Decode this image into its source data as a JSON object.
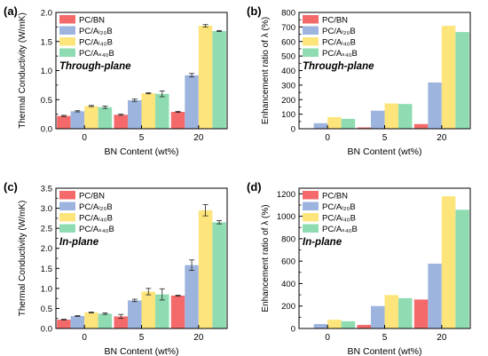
{
  "colors": {
    "series": [
      "#f46a6a",
      "#9db5de",
      "#fde57b",
      "#8fdcb3"
    ],
    "axis": "#000000"
  },
  "chart_data": [
    {
      "type": "bar",
      "panel_label": "(a)",
      "annotation": "Through-plane",
      "categories": [
        "0",
        "5",
        "20"
      ],
      "xlabel": "BN Content (wt%)",
      "ylabel": "Thermal Conductivity (W/mK)",
      "ylim": [
        0,
        2.0
      ],
      "yticks": [
        "0.0",
        "0.5",
        "1.0",
        "1.5",
        "2.0"
      ],
      "legend": "top-left",
      "grid": false,
      "error_bars": true,
      "series": [
        {
          "name": "PC/BN",
          "values": [
            0.22,
            0.24,
            0.29
          ],
          "errors": [
            0.01,
            0.01,
            0.01
          ]
        },
        {
          "name": "PC/Aₗ₂₀B",
          "values": [
            0.3,
            0.49,
            0.92
          ],
          "errors": [
            0.01,
            0.02,
            0.03
          ]
        },
        {
          "name": "PC/Aₗ₄₀B",
          "values": [
            0.39,
            0.61,
            1.77
          ],
          "errors": [
            0.01,
            0.01,
            0.02
          ]
        },
        {
          "name": "PC/Aₛ₄₀B",
          "values": [
            0.37,
            0.6,
            1.68
          ],
          "errors": [
            0.02,
            0.05,
            0.01
          ]
        }
      ]
    },
    {
      "type": "bar",
      "panel_label": "(b)",
      "annotation": "Through-plane",
      "categories": [
        "0",
        "5",
        "20"
      ],
      "xlabel": "BN Content (wt%)",
      "ylabel": "Enhancement ratio of λ (%)",
      "ylim": [
        0,
        800
      ],
      "yticks": [
        "0",
        "100",
        "200",
        "300",
        "400",
        "500",
        "600",
        "700",
        "800"
      ],
      "legend": "top-left",
      "grid": false,
      "error_bars": false,
      "series": [
        {
          "name": "PC/BN",
          "values": [
            0,
            9,
            32
          ]
        },
        {
          "name": "PC/Aₗ₂₀B",
          "values": [
            38,
            124,
            318
          ]
        },
        {
          "name": "PC/Aₗ₄₀B",
          "values": [
            80,
            174,
            708
          ]
        },
        {
          "name": "PC/Aₛ₄₀B",
          "values": [
            68,
            170,
            665
          ]
        }
      ]
    },
    {
      "type": "bar",
      "panel_label": "(c)",
      "annotation": "In-plane",
      "categories": [
        "0",
        "5",
        "20"
      ],
      "xlabel": "BN Content (wt%)",
      "ylabel": "Thermal Conductivity (W/mK)",
      "ylim": [
        0,
        3.5
      ],
      "yticks": [
        "0.0",
        "0.5",
        "1.0",
        "1.5",
        "2.0",
        "2.5",
        "3.0",
        "3.5"
      ],
      "legend": "top-left",
      "grid": false,
      "error_bars": true,
      "series": [
        {
          "name": "PC/BN",
          "values": [
            0.22,
            0.3,
            0.82
          ],
          "errors": [
            0.01,
            0.05,
            0.01
          ]
        },
        {
          "name": "PC/Aₗ₂₀B",
          "values": [
            0.31,
            0.7,
            1.58
          ],
          "errors": [
            0.01,
            0.03,
            0.13
          ]
        },
        {
          "name": "PC/Aₗ₄₀B",
          "values": [
            0.4,
            0.92,
            2.95
          ],
          "errors": [
            0.01,
            0.08,
            0.14
          ]
        },
        {
          "name": "PC/Aₛ₄₀B",
          "values": [
            0.37,
            0.85,
            2.65
          ],
          "errors": [
            0.02,
            0.14,
            0.04
          ]
        }
      ]
    },
    {
      "type": "bar",
      "panel_label": "(d)",
      "annotation": "In-plane",
      "categories": [
        "0",
        "5",
        "20"
      ],
      "xlabel": "BN Content (wt%)",
      "ylabel": "Enhancement ratio of λ (%)",
      "ylim": [
        0,
        1250
      ],
      "yticks": [
        "0",
        "200",
        "400",
        "600",
        "800",
        "1000",
        "1200"
      ],
      "legend": "top-left",
      "grid": false,
      "error_bars": false,
      "series": [
        {
          "name": "PC/BN",
          "values": [
            0,
            32,
            258
          ]
        },
        {
          "name": "PC/Aₗ₂₀B",
          "values": [
            40,
            200,
            578
          ]
        },
        {
          "name": "PC/Aₗ₄₀B",
          "values": [
            78,
            298,
            1178
          ]
        },
        {
          "name": "PC/Aₛ₄₀B",
          "values": [
            65,
            270,
            1058
          ]
        }
      ]
    }
  ]
}
